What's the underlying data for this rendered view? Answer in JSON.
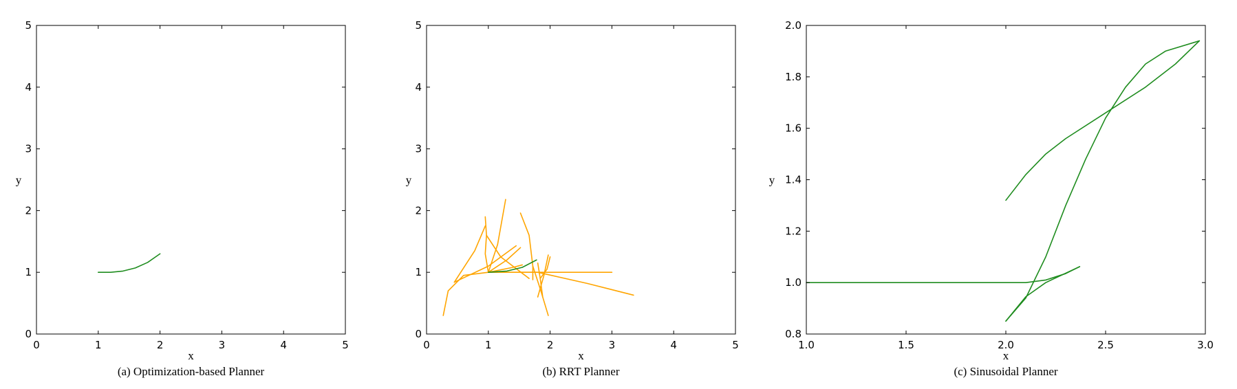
{
  "colors": {
    "path": "#1e8c1e",
    "tree": "#ffa500",
    "axes": "#000000"
  },
  "chart_data": [
    {
      "type": "line",
      "caption": "(a) Optimization-based Planner",
      "xlabel": "x",
      "ylabel": "y",
      "xlim": [
        0,
        5
      ],
      "ylim": [
        0,
        5
      ],
      "xticks": [
        0,
        1,
        2,
        3,
        4,
        5
      ],
      "yticks": [
        0,
        1,
        2,
        3,
        4,
        5
      ],
      "xtick_labels": [
        "0",
        "1",
        "2",
        "3",
        "4",
        "5"
      ],
      "ytick_labels": [
        "0",
        "1",
        "2",
        "3",
        "4",
        "5"
      ],
      "grid": false,
      "series": [
        {
          "role": "path",
          "color": "#1e8c1e",
          "points": [
            [
              1.0,
              1.0
            ],
            [
              1.2,
              1.0
            ],
            [
              1.4,
              1.02
            ],
            [
              1.6,
              1.07
            ],
            [
              1.8,
              1.16
            ],
            [
              2.0,
              1.3
            ]
          ]
        }
      ]
    },
    {
      "type": "line",
      "caption": "(b) RRT Planner",
      "xlabel": "x",
      "ylabel": "y",
      "xlim": [
        0,
        5
      ],
      "ylim": [
        0,
        5
      ],
      "xticks": [
        0,
        1,
        2,
        3,
        4,
        5
      ],
      "yticks": [
        0,
        1,
        2,
        3,
        4,
        5
      ],
      "xtick_labels": [
        "0",
        "1",
        "2",
        "3",
        "4",
        "5"
      ],
      "ytick_labels": [
        "0",
        "1",
        "2",
        "3",
        "4",
        "5"
      ],
      "grid": false,
      "series": [
        {
          "role": "tree",
          "color": "#ffa500",
          "points": [
            [
              1.0,
              1.0
            ],
            [
              2.0,
              1.0
            ],
            [
              3.0,
              1.0
            ]
          ]
        },
        {
          "role": "tree",
          "color": "#ffa500",
          "points": [
            [
              1.0,
              1.0
            ],
            [
              1.8,
              1.0
            ],
            [
              2.6,
              0.82
            ],
            [
              3.35,
              0.63
            ]
          ]
        },
        {
          "role": "tree",
          "color": "#ffa500",
          "points": [
            [
              1.0,
              1.0
            ],
            [
              0.6,
              0.95
            ],
            [
              0.35,
              0.7
            ],
            [
              0.27,
              0.3
            ]
          ]
        },
        {
          "role": "tree",
          "color": "#ffa500",
          "points": [
            [
              1.0,
              1.0
            ],
            [
              0.95,
              1.3
            ],
            [
              0.97,
              1.6
            ],
            [
              0.95,
              1.9
            ]
          ]
        },
        {
          "role": "tree",
          "color": "#ffa500",
          "points": [
            [
              1.0,
              1.0
            ],
            [
              1.15,
              1.45
            ],
            [
              1.28,
              2.18
            ]
          ]
        },
        {
          "role": "tree",
          "color": "#ffa500",
          "points": [
            [
              0.97,
              1.6
            ],
            [
              1.2,
              1.25
            ],
            [
              1.66,
              0.9
            ]
          ]
        },
        {
          "role": "tree",
          "color": "#ffa500",
          "points": [
            [
              0.95,
              1.75
            ],
            [
              0.78,
              1.35
            ],
            [
              0.45,
              0.84
            ]
          ]
        },
        {
          "role": "tree",
          "color": "#ffa500",
          "points": [
            [
              0.45,
              0.84
            ],
            [
              1.0,
              1.1
            ],
            [
              1.45,
              1.43
            ]
          ]
        },
        {
          "role": "tree",
          "color": "#ffa500",
          "points": [
            [
              1.0,
              1.0
            ],
            [
              1.3,
              1.2
            ],
            [
              1.52,
              1.4
            ]
          ]
        },
        {
          "role": "tree",
          "color": "#ffa500",
          "points": [
            [
              1.0,
              1.0
            ],
            [
              1.4,
              1.08
            ],
            [
              1.55,
              1.12
            ]
          ]
        },
        {
          "role": "tree",
          "color": "#ffa500",
          "points": [
            [
              1.52,
              1.96
            ],
            [
              1.66,
              1.6
            ],
            [
              1.72,
              1.1
            ],
            [
              1.72,
              0.88
            ]
          ]
        },
        {
          "role": "tree",
          "color": "#ffa500",
          "points": [
            [
              1.72,
              1.1
            ],
            [
              1.85,
              0.7
            ],
            [
              1.97,
              0.3
            ]
          ]
        },
        {
          "role": "tree",
          "color": "#ffa500",
          "points": [
            [
              1.8,
              1.15
            ],
            [
              1.84,
              0.9
            ],
            [
              1.88,
              0.6
            ]
          ]
        },
        {
          "role": "tree",
          "color": "#ffa500",
          "points": [
            [
              1.8,
              0.6
            ],
            [
              1.9,
              0.95
            ],
            [
              1.97,
              1.28
            ]
          ]
        },
        {
          "role": "tree",
          "color": "#ffa500",
          "points": [
            [
              1.84,
              0.9
            ],
            [
              1.95,
              1.05
            ],
            [
              2.0,
              1.25
            ]
          ]
        },
        {
          "role": "path",
          "color": "#1e8c1e",
          "points": [
            [
              1.0,
              1.0
            ],
            [
              1.3,
              1.02
            ],
            [
              1.55,
              1.08
            ],
            [
              1.78,
              1.2
            ]
          ]
        }
      ]
    },
    {
      "type": "line",
      "caption": "(c) Sinusoidal Planner",
      "xlabel": "x",
      "ylabel": "y",
      "xlim": [
        1.0,
        3.0
      ],
      "ylim": [
        0.8,
        2.0
      ],
      "xticks": [
        1.0,
        1.5,
        2.0,
        2.5,
        3.0
      ],
      "yticks": [
        0.8,
        1.0,
        1.2,
        1.4,
        1.6,
        1.8,
        2.0
      ],
      "xtick_labels": [
        "1.0",
        "1.5",
        "2.0",
        "2.5",
        "3.0"
      ],
      "ytick_labels": [
        "0.8",
        "1.0",
        "1.2",
        "1.4",
        "1.6",
        "1.8",
        "2.0"
      ],
      "grid": false,
      "series": [
        {
          "role": "path",
          "color": "#1e8c1e",
          "points": [
            [
              1.0,
              1.0
            ],
            [
              1.5,
              1.0
            ],
            [
              2.0,
              1.0
            ],
            [
              2.1,
              1.0
            ],
            [
              2.2,
              1.01
            ],
            [
              2.3,
              1.035
            ],
            [
              2.37,
              1.062
            ]
          ]
        },
        {
          "role": "path",
          "color": "#1e8c1e",
          "points": [
            [
              2.37,
              1.062
            ],
            [
              2.2,
              1.0
            ],
            [
              2.1,
              0.945
            ],
            [
              2.0,
              0.85
            ]
          ]
        },
        {
          "role": "path",
          "color": "#1e8c1e",
          "points": [
            [
              2.0,
              0.85
            ],
            [
              2.1,
              0.94
            ],
            [
              2.2,
              1.1
            ],
            [
              2.3,
              1.3
            ],
            [
              2.4,
              1.48
            ],
            [
              2.5,
              1.64
            ],
            [
              2.6,
              1.76
            ],
            [
              2.7,
              1.85
            ],
            [
              2.8,
              1.9
            ],
            [
              2.97,
              1.94
            ]
          ]
        },
        {
          "role": "path",
          "color": "#1e8c1e",
          "points": [
            [
              2.0,
              1.32
            ],
            [
              2.1,
              1.42
            ],
            [
              2.2,
              1.5
            ],
            [
              2.3,
              1.56
            ],
            [
              2.5,
              1.66
            ],
            [
              2.7,
              1.76
            ],
            [
              2.85,
              1.85
            ],
            [
              2.97,
              1.94
            ]
          ]
        }
      ]
    }
  ]
}
